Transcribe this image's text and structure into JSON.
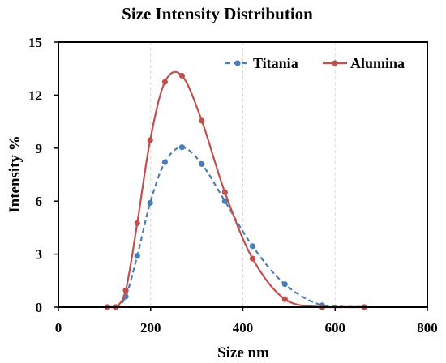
{
  "chart_data": {
    "type": "line",
    "title": "Size Intensity Distribution",
    "xlabel": "Size nm",
    "ylabel": "Intensity %",
    "xlim": [
      0,
      800
    ],
    "ylim": [
      0,
      15
    ],
    "x_ticks": [
      0,
      200,
      400,
      600,
      800
    ],
    "y_ticks": [
      0,
      3,
      6,
      9,
      12,
      15
    ],
    "grid": "vertical dashed",
    "legend_position": "top-right",
    "series": [
      {
        "name": "Titania",
        "color": "#4a7ebb",
        "line_style": "dashed",
        "points": [
          {
            "x": 106,
            "y": 0
          },
          {
            "x": 124,
            "y": 0
          },
          {
            "x": 146,
            "y": 0.6
          },
          {
            "x": 171,
            "y": 2.9
          },
          {
            "x": 199,
            "y": 5.9
          },
          {
            "x": 231,
            "y": 8.2
          },
          {
            "x": 268,
            "y": 9.05
          },
          {
            "x": 311,
            "y": 8.1
          },
          {
            "x": 361,
            "y": 6.0
          },
          {
            "x": 421,
            "y": 3.45
          },
          {
            "x": 491,
            "y": 1.3
          },
          {
            "x": 572,
            "y": 0.1
          },
          {
            "x": 663,
            "y": 0
          }
        ]
      },
      {
        "name": "Alumina",
        "color": "#c0504d",
        "line_style": "solid",
        "points": [
          {
            "x": 106,
            "y": 0
          },
          {
            "x": 124,
            "y": 0
          },
          {
            "x": 146,
            "y": 0.95
          },
          {
            "x": 171,
            "y": 4.75
          },
          {
            "x": 199,
            "y": 9.45
          },
          {
            "x": 231,
            "y": 12.75
          },
          {
            "x": 268,
            "y": 13.1
          },
          {
            "x": 311,
            "y": 10.55
          },
          {
            "x": 361,
            "y": 6.5
          },
          {
            "x": 421,
            "y": 2.75
          },
          {
            "x": 491,
            "y": 0.45
          },
          {
            "x": 572,
            "y": 0
          },
          {
            "x": 663,
            "y": 0
          }
        ]
      }
    ]
  }
}
